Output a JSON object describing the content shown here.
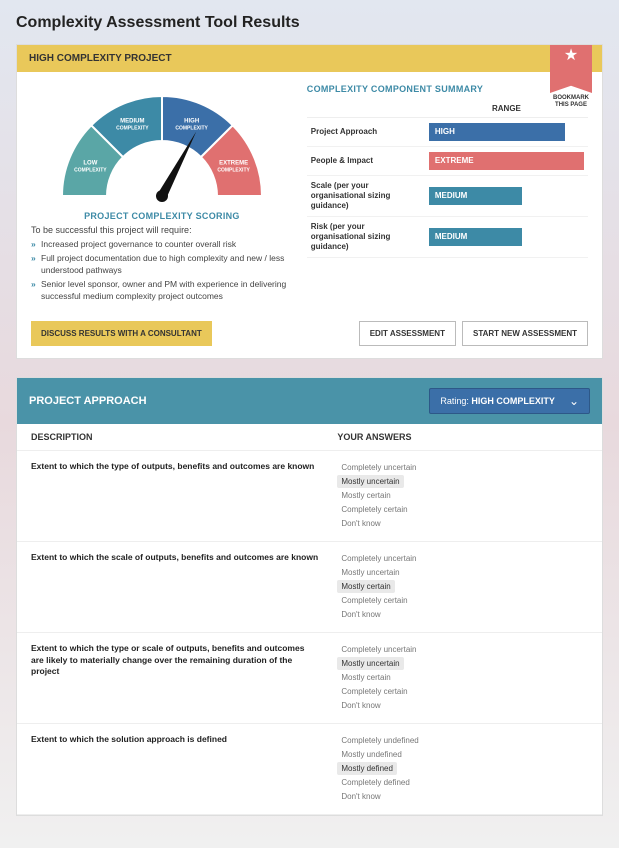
{
  "page_title": "Complexity Assessment Tool Results",
  "bookmark": {
    "label": "BOOKMARK THIS PAGE"
  },
  "result_card": {
    "header": "HIGH COMPLEXITY PROJECT",
    "gauge": {
      "segments": [
        {
          "label1": "LOW",
          "label2": "COMPLEXITY",
          "color": "#5aa6a6"
        },
        {
          "label1": "MEDIUM",
          "label2": "COMPLEXITY",
          "color": "#3d8aa6"
        },
        {
          "label1": "HIGH",
          "label2": "COMPLEXITY",
          "color": "#3b6fa8"
        },
        {
          "label1": "EXTREME",
          "label2": "COMPLEXITY",
          "color": "#e07070"
        }
      ],
      "needle_angle_deg": 55
    },
    "scoring": {
      "title": "PROJECT COMPLEXITY SCORING",
      "intro": "To be successful this project will require:",
      "requirements": [
        "Increased project governance to counter overall risk",
        "Full project documentation due to high complexity and new / less understood pathways",
        "Senior level sponsor, owner and PM with experience in delivering successful medium complexity project outcomes"
      ]
    },
    "summary": {
      "title": "COMPLEXITY COMPONENT SUMMARY",
      "range_header": "RANGE",
      "rows": [
        {
          "label": "Project Approach",
          "value": "HIGH",
          "color": "#3b6fa8",
          "width_pct": 88
        },
        {
          "label": "People & Impact",
          "value": "EXTREME",
          "color": "#e07070",
          "width_pct": 100
        },
        {
          "label": "Scale (per your organisational sizing guidance)",
          "value": "MEDIUM",
          "color": "#3d8aa6",
          "width_pct": 60
        },
        {
          "label": "Risk (per your organisational sizing guidance)",
          "value": "MEDIUM",
          "color": "#3d8aa6",
          "width_pct": 60
        }
      ]
    },
    "buttons": {
      "discuss": "DISCUSS RESULTS WITH A CONSULTANT",
      "edit": "EDIT ASSESSMENT",
      "start_new": "START NEW ASSESSMENT"
    }
  },
  "approach_section": {
    "header": "PROJECT APPROACH",
    "rating_label": "Rating: ",
    "rating_value": "HIGH COMPLEXITY",
    "col_description": "DESCRIPTION",
    "col_answers": "YOUR ANSWERS",
    "questions": [
      {
        "description": "Extent to which the type of outputs, benefits and outcomes are known",
        "answers": [
          "Completely uncertain",
          "Mostly uncertain",
          "Mostly certain",
          "Completely certain",
          "Don't know"
        ],
        "selected_index": 1
      },
      {
        "description": "Extent to which the scale of outputs, benefits and outcomes are known",
        "answers": [
          "Completely uncertain",
          "Mostly uncertain",
          "Mostly certain",
          "Completely certain",
          "Don't know"
        ],
        "selected_index": 2
      },
      {
        "description": "Extent to which the type or scale of outputs, benefits and outcomes are likely to materially change over the remaining duration of the project",
        "answers": [
          "Completely uncertain",
          "Mostly uncertain",
          "Mostly certain",
          "Completely certain",
          "Don't know"
        ],
        "selected_index": 1
      },
      {
        "description": "Extent to which the solution approach is defined",
        "answers": [
          "Completely undefined",
          "Mostly undefined",
          "Mostly defined",
          "Completely defined",
          "Don't know"
        ],
        "selected_index": 2
      }
    ]
  }
}
